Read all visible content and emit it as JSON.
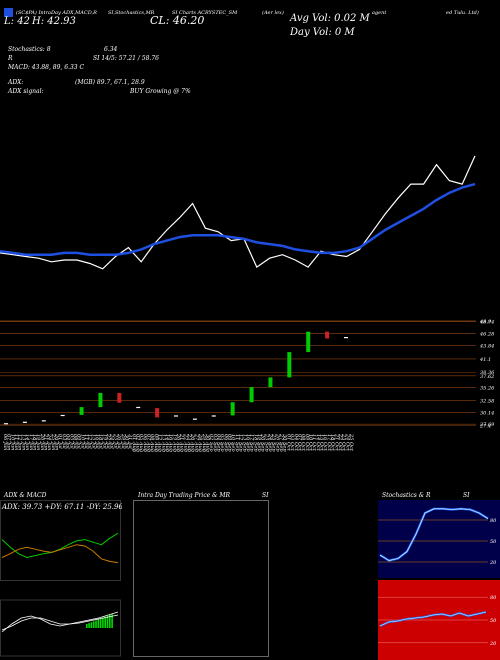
{
  "header": {
    "line1": "(SC$PA) Intra-Day ADX,MACD,R SI,Stochastics,MR SI Charts ACRYSTEC_SM (Aer lex) agent ed Tulu. Ltd)",
    "lines_top_left": [
      "(SC$PA) IntraDay ADX,MACD,R",
      "SI,Stochastics,MR",
      "SI Charts ACRYSTEC_SM",
      "(Aer lex)",
      "agent",
      "ed Tulu. Ltd)"
    ],
    "price_low": "L: 42",
    "price_high": "H: 42.93",
    "close": "CL: 46.20",
    "avg_vol": "Avg Vol: 0.02  M",
    "day_vol": "Day Vol: 0   M"
  },
  "indicators": {
    "stoch_label": "Stochastics: 8",
    "stoch_val": "6.34",
    "rsi_label": "R",
    "rsi_val": "SI 14/5: 57.21 / 58.76",
    "macd": "MACD: 43.88,  89,  6.33 C",
    "adx_label": "ADX:",
    "adx_val": "(MGB) 89.7,  67.1,  28.9",
    "adx_signal_label": "ADX  signal:",
    "adx_signal_val": "BUY Growing @ 7%"
  },
  "colors": {
    "background": "#000000",
    "price_line": "#ffffff",
    "ma_line": "#1f4fe0",
    "bull_candle": "#00cc00",
    "bear_candle": "#cc2222",
    "level_line": "#8b4513",
    "rsi_fill": "#00004a",
    "mrsi_fill": "#cc0000",
    "macd_hist": "#00dd00",
    "adx_plus": "#00cc00",
    "adx_minus": "#cc7a00"
  },
  "price_levels": [
    "48.9",
    "48.74",
    "46.28",
    "43.84",
    "41.1",
    "38.36",
    "37.62",
    "35.26",
    "32.58",
    "30.14",
    "27.4",
    "27.69"
  ],
  "dates": [
    "06 Jun",
    "07 Jun",
    "10 Jun",
    "11 Jun",
    "12 Jun",
    "13 Jun",
    "14 Jun",
    "17 Jun",
    "18 Jun",
    "19 Jun",
    "20 Jun",
    "21 Jun",
    "24 Jun",
    "25 Jun",
    "26 Jun",
    "01 Jul",
    "03 Jul",
    "04 Jul",
    "05 Jul",
    "08 Jul",
    "09 Jul",
    "10 Jul",
    "11 Jul",
    "12 Jul",
    "15 Jul",
    "16 Jul",
    "18 Jul",
    "19 Jul",
    "22 Jul",
    "24 Jul",
    "25 Jul",
    "26 Jul",
    "29 Jul",
    "30 Jul",
    "31 Jul",
    "01 Aug",
    "02 Aug",
    "05 Aug",
    "06 Aug",
    "07 Aug",
    "08 Aug",
    "09 Aug",
    "12 Aug",
    "13 Aug",
    "14 Aug",
    "16 Aug",
    "19 Aug",
    "20 Aug",
    "21 Aug",
    "22 Aug",
    "23 Aug",
    "26 Aug",
    "27 Aug",
    "28 Aug",
    "29 Aug",
    "30 Aug",
    "02 Sep",
    "03 Sep",
    "04 Sep",
    "05 Sep",
    "06 Sep",
    "09 Sep",
    "10 Sep",
    "11 Sep",
    "12 Sep",
    "13 Sep",
    "16 Sep",
    "17 Sep",
    "18 Sep",
    "19 Sep",
    "20 Sep",
    "23 Sep",
    "24 Sep",
    "25 Sep",
    "26 Sep",
    "27 Sep",
    "30 Sep",
    "01 Oct",
    "03 Oct",
    "04 Oct",
    "07 Oct",
    "08 Oct",
    "09 Oct",
    "10 Oct",
    "11 Oct",
    "14 Oct",
    "15 Oct",
    "16 Oct",
    "17 Oct",
    "18 Oct",
    "21 Oct",
    "22 Oct",
    "23 Oct",
    "24 Oct",
    "25 Oct"
  ],
  "panels": {
    "adx_title": "ADX  & MACD",
    "adx_values": "ADX: 39.73  +DY: 67.11  -DY: 25.96",
    "intraday_title": "Intra  Day Trading Price  & MR",
    "intraday_si": "SI",
    "stoch_title": "Stochastics  & R",
    "stoch_si": "SI",
    "rsi_ticks": [
      "80",
      "50",
      "20"
    ],
    "mrsi_ticks": [
      "80",
      "50",
      "20"
    ]
  },
  "chart_data": [
    {
      "type": "line",
      "title": "",
      "series": [
        {
          "name": "",
          "values": [
            44.1,
            44.0,
            43.9,
            43.8,
            43.6,
            43.7,
            43.7,
            43.5,
            43.2,
            43.9,
            44.4,
            43.6,
            44.6,
            45.4,
            46.1,
            46.9,
            45.5,
            45.3,
            44.8,
            44.9,
            43.3,
            43.8,
            44.0,
            43.7,
            43.3,
            44.2,
            44.0,
            43.9,
            44.3,
            45.3,
            46.3,
            47.2,
            48.0,
            48.0,
            49.1,
            48.2,
            48.0,
            49.6
          ]
        },
        {
          "name": "",
          "values": [
            44.2,
            44.1,
            44.0,
            44.0,
            44.0,
            44.1,
            44.1,
            44.0,
            44.0,
            44.0,
            44.1,
            44.3,
            44.6,
            44.8,
            45.0,
            45.1,
            45.1,
            45.1,
            45.0,
            44.9,
            44.7,
            44.6,
            44.5,
            44.3,
            44.2,
            44.1,
            44.1,
            44.2,
            44.4,
            44.9,
            45.4,
            45.8,
            46.2,
            46.6,
            47.1,
            47.5,
            47.8,
            48.0
          ]
        }
      ]
    },
    {
      "type": "bar",
      "title": "",
      "categories": [
        "06 Jun",
        "12 Jun",
        "19 Jun",
        "26 Jun",
        "05 Jul",
        "12 Jul",
        "22 Jul",
        "30 Jul",
        "07 Aug",
        "14 Aug",
        "23 Aug",
        "30 Aug",
        "09 Sep",
        "16 Sep",
        "23 Sep",
        "30 Sep",
        "08 Oct",
        "16 Oct",
        "25 Oct"
      ],
      "values": [
        27.9,
        28.2,
        28.5,
        29.6,
        31.2,
        34.1,
        32.1,
        31.0,
        29.1,
        29.5,
        28.6,
        29.5,
        32.2,
        35.3,
        37.3,
        42.5,
        46.7,
        45.3,
        45.6
      ]
    },
    {
      "type": "line",
      "title": "",
      "series": [
        {
          "name": "",
          "values": [
            60,
            48,
            38,
            32,
            35,
            38,
            40,
            45,
            52,
            58,
            60,
            56,
            52,
            62,
            70
          ]
        },
        {
          "name": "",
          "values": [
            32,
            38,
            45,
            48,
            45,
            42,
            40,
            44,
            48,
            52,
            50,
            42,
            30,
            26,
            24
          ]
        }
      ]
    },
    {
      "type": "line",
      "title": "",
      "series": [
        {
          "name": "",
          "values": [
            30,
            22,
            25,
            35,
            60,
            90,
            96,
            96,
            95,
            96,
            95,
            90,
            82
          ]
        }
      ]
    }
  ]
}
